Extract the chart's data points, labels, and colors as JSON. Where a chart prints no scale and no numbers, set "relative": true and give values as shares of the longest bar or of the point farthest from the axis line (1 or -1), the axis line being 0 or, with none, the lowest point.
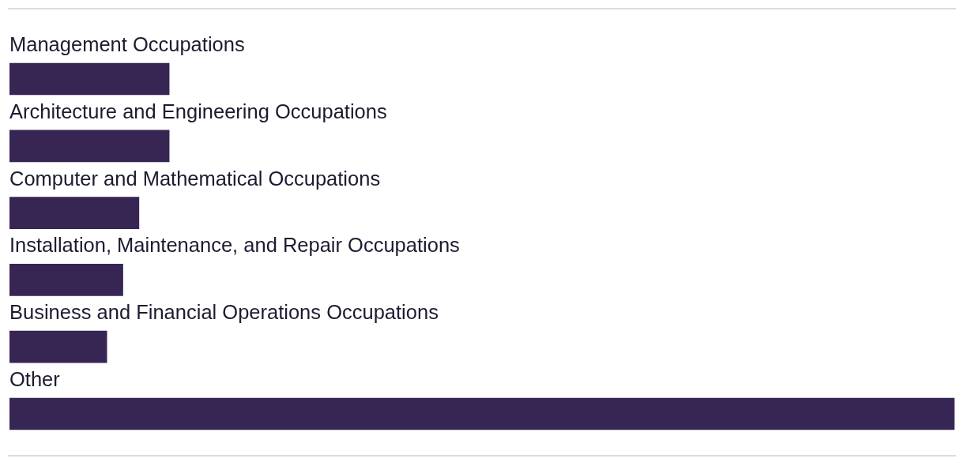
{
  "chart_data": {
    "type": "bar",
    "orientation": "horizontal",
    "relative": true,
    "categories": [
      "Management Occupations",
      "Architecture and Engineering Occupations",
      "Computer and Mathematical Occupations",
      "Installation, Maintenance, and Repair Occupations",
      "Business and Financial Operations Occupations",
      "Other"
    ],
    "values": [
      0.169,
      0.169,
      0.137,
      0.12,
      0.103,
      1
    ],
    "color": "#372554"
  }
}
